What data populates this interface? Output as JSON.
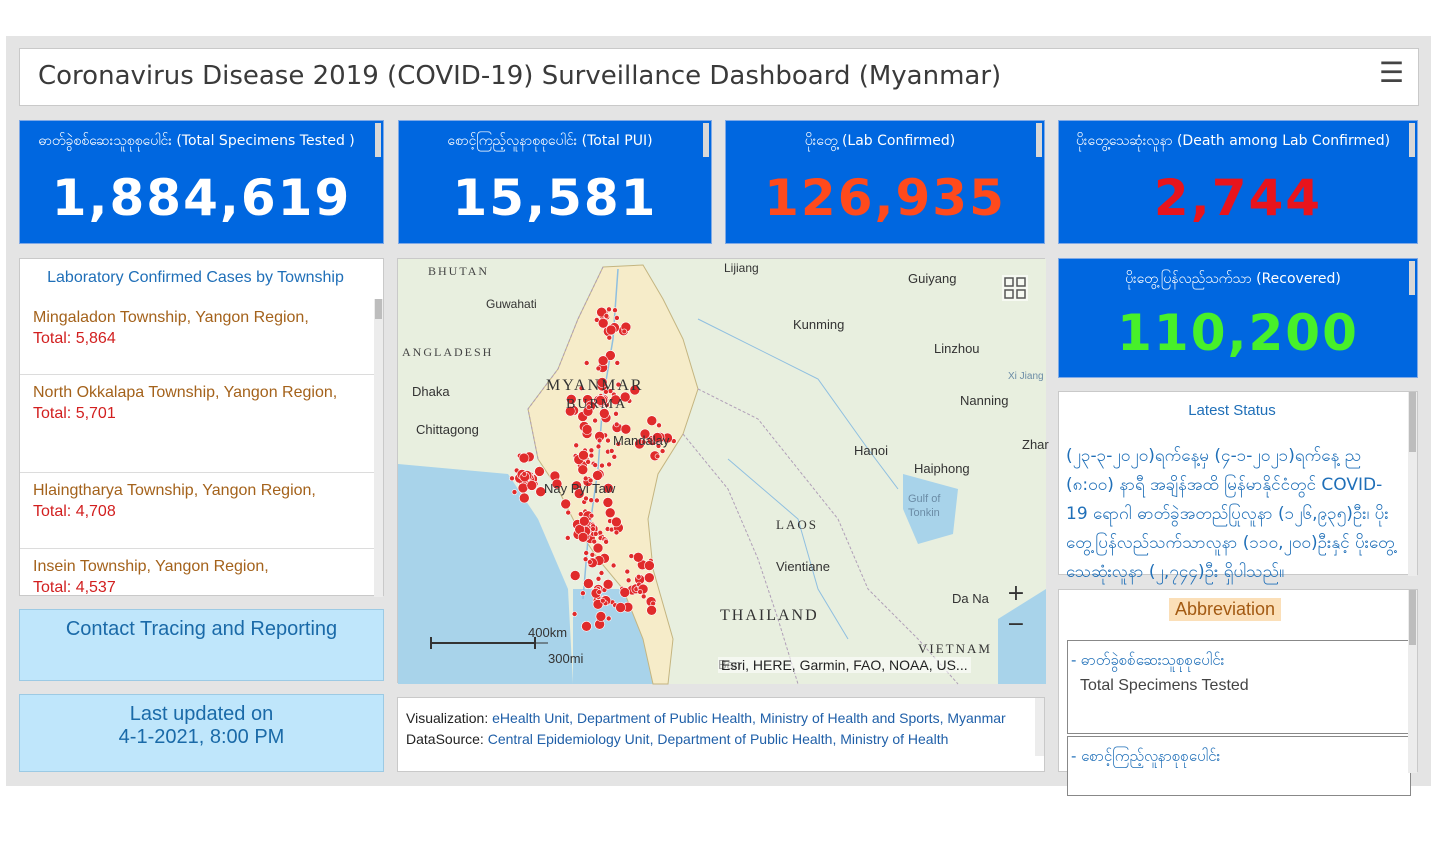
{
  "header": {
    "title": "Coronavirus Disease 2019 (COVID-19) Surveillance Dashboard (Myanmar)"
  },
  "stats": [
    {
      "label": "ဓာတ်ခွဲစစ်ဆေးသူစုစုပေါင်း (Total Specimens Tested )",
      "value": "1,884,619",
      "color": "#ffffff"
    },
    {
      "label": "စောင့်ကြည့်လူနာစုစုပေါင်း (Total PUI)",
      "value": "15,581",
      "color": "#ffffff"
    },
    {
      "label": "ပိုးတွေ့ (Lab Confirmed)",
      "value": "126,935",
      "color": "#ff4a1c"
    },
    {
      "label": "ပိုးတွေ့သေဆုံးလူနာ (Death among Lab Confirmed)",
      "value": "2,744",
      "color": "#e8141c"
    },
    {
      "label": "ပိုးတွေ့ပြန်လည်သက်သာ (Recovered)",
      "value": "110,200",
      "color": "#47f02a"
    }
  ],
  "township_list": {
    "title": "Laboratory Confirmed Cases by Township",
    "items": [
      {
        "name": "Mingaladon Township, Yangon Region,",
        "total": "Total: 5,864"
      },
      {
        "name": "North Okkalapa Township, Yangon Region,",
        "total": "Total: 5,701"
      },
      {
        "name": "Hlaingtharya Township, Yangon Region,",
        "total": "Total: 4,708"
      },
      {
        "name": "Insein Township, Yangon Region,",
        "total": "Total: 4,537"
      }
    ]
  },
  "contact_tracing": {
    "label": "Contact Tracing and Reporting"
  },
  "last_updated": {
    "line1": "Last updated on",
    "line2": "4-1-2021, 8:00 PM"
  },
  "map": {
    "places": [
      "BHUTAN",
      "Guwahati",
      "ANGLADESH",
      "Dhaka",
      "Chittagong",
      "MYANMAR",
      "BURMA",
      "Mandalay",
      "Nay Pyi Taw",
      "Lijiang",
      "Guiyang",
      "Kunming",
      "Linzhou",
      "Nanning",
      "Hanoi",
      "Haiphong",
      "Gulf of",
      "Tonkin",
      "LAOS",
      "Vientiane",
      "THAILAND",
      "Da Na",
      "VIETNAM",
      "Zhar",
      "Ban",
      "Xi Jiang"
    ],
    "scale_km": "400km",
    "scale_mi": "300mi",
    "zoom_in": "+",
    "zoom_out": "−",
    "attribution": "Esri, HERE, Garmin, FAO, NOAA, US..."
  },
  "credits": {
    "viz_label": "Visualization:",
    "viz_text": "eHealth Unit, Department of Public Health, Ministry of Health and Sports, Myanmar",
    "source_label": "DataSource:",
    "source_text": "Central Epidemiology Unit, Department of Public Health, Ministry of Health"
  },
  "latest_status": {
    "title": "Latest Status",
    "body": "(၂၃-၃-၂၀၂၀)ရက်နေ့မှ (၄-၁-၂၀၂၁)ရက်နေ့ ည (၈:၀၀) နာရီ အချိန်အထိ မြန်မာနိုင်ငံတွင် COVID-19 ရောဂါ ဓာတ်ခွဲအတည်ပြုလူနာ (၁၂၆,၉၃၅)ဦး၊ ပိုးတွေ့ပြန်လည်သက်သာလူနာ (၁၁၀,၂၀၀)ဦးနှင့် ပိုးတွေ့သေဆုံးလူနာ (၂,၇၄၄)ဦး ရှိပါသည်။"
  },
  "abbreviation": {
    "title": "Abbreviation",
    "items": [
      {
        "my": "- ဓာတ်ခွဲစစ်ဆေးသူစုစုပေါင်း",
        "en": "Total Specimens Tested"
      },
      {
        "my": "- စောင့်ကြည့်လူနာစုစုပေါင်း",
        "en": ""
      }
    ]
  },
  "icons": {
    "menu": "hamburger-menu-icon",
    "qr": "qr-code-icon",
    "zoom_in": "plus-icon",
    "zoom_out": "minus-icon"
  }
}
